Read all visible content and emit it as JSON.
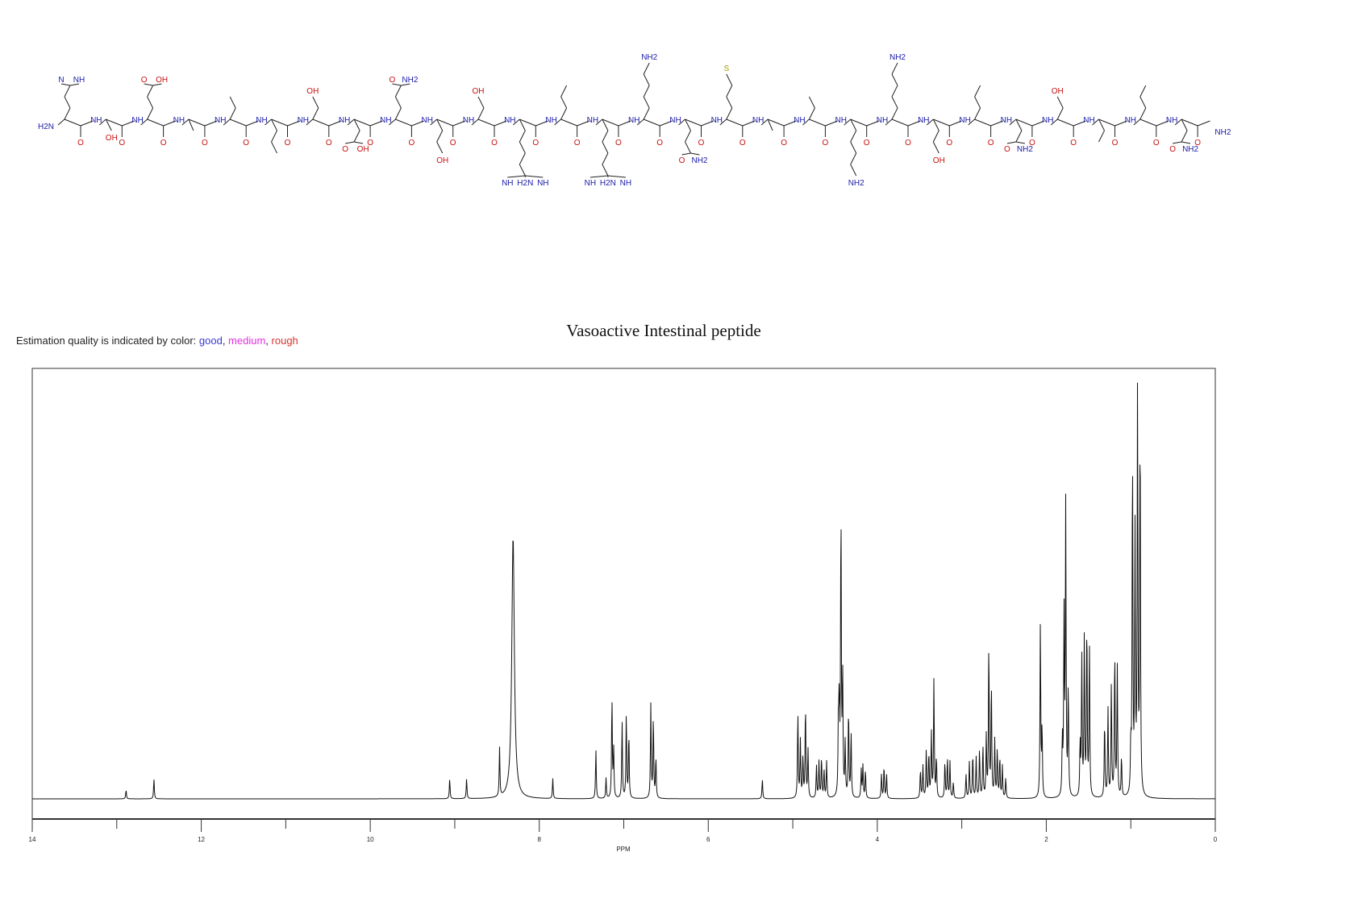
{
  "legend": {
    "prefix": "Estimation quality is indicated by color: ",
    "good": "good",
    "medium": "medium",
    "rough": "rough",
    "colors": {
      "good": "#3a3ad0",
      "medium": "#e030e0",
      "rough": "#d83030"
    }
  },
  "structure": {
    "n_terminus": "H2N",
    "c_terminus": "NH2",
    "amide": "NH",
    "carbonyl": "O",
    "atom_colors": {
      "N": "#1a1aa8",
      "O": "#c81010",
      "S": "#a09a00",
      "C": "#222222"
    },
    "sidechain_labels": [
      [
        "N",
        "NH"
      ],
      [
        "OH"
      ],
      [
        "O",
        "OH"
      ],
      [],
      [],
      [],
      [
        "OH"
      ],
      [
        "O",
        "OH"
      ],
      [
        "O",
        "NH2"
      ],
      [
        "OH"
      ],
      [
        "OH"
      ],
      [
        "NH",
        "H2N",
        "NH"
      ],
      [],
      [
        "NH",
        "H2N",
        "NH"
      ],
      [
        "NH2"
      ],
      [
        "O",
        "NH2"
      ],
      [
        "S"
      ],
      [],
      [],
      [
        "NH2"
      ],
      [
        "NH2"
      ],
      [
        "OH"
      ],
      [],
      [
        "O",
        "NH2"
      ],
      [
        "OH"
      ],
      [],
      [],
      [
        "O",
        "NH2"
      ]
    ]
  },
  "chart_data": {
    "type": "line",
    "title": "Vasoactive Intestinal peptide",
    "xlabel": "PPM",
    "ylabel": "",
    "xlim": [
      14,
      0
    ],
    "x_reversed": true,
    "ylim": [
      0,
      105
    ],
    "grid": false,
    "x_tick_labels": [
      "14",
      "12",
      "10",
      "8",
      "6",
      "4",
      "2",
      "0"
    ],
    "x_major_ticks": [
      14,
      12,
      10,
      8,
      6,
      4,
      2,
      0
    ],
    "x_minor_ticks": [
      13,
      11,
      9,
      7,
      5,
      3,
      1
    ],
    "line_color": "#111111",
    "peaks_ppm_relative_intensity": [
      [
        12.89,
        2.2
      ],
      [
        12.56,
        4.9
      ],
      [
        9.06,
        4.9
      ],
      [
        8.86,
        4.9
      ],
      [
        8.47,
        12
      ],
      [
        8.31,
        64
      ],
      [
        7.84,
        4.9
      ],
      [
        7.33,
        12
      ],
      [
        7.21,
        5
      ],
      [
        7.14,
        25
      ],
      [
        7.12,
        12
      ],
      [
        7.02,
        19
      ],
      [
        6.97,
        21
      ],
      [
        6.94,
        16
      ],
      [
        6.68,
        23
      ],
      [
        6.65,
        20
      ],
      [
        6.62,
        10
      ],
      [
        5.36,
        4.9
      ],
      [
        4.94,
        21
      ],
      [
        4.91,
        14
      ],
      [
        4.88,
        10
      ],
      [
        4.85,
        23
      ],
      [
        4.82,
        12
      ],
      [
        4.72,
        8
      ],
      [
        4.69,
        9
      ],
      [
        4.66,
        10
      ],
      [
        4.63,
        7
      ],
      [
        4.6,
        9
      ],
      [
        4.46,
        18
      ],
      [
        4.45,
        22
      ],
      [
        4.43,
        71
      ],
      [
        4.41,
        29
      ],
      [
        4.38,
        13
      ],
      [
        4.34,
        22
      ],
      [
        4.31,
        16
      ],
      [
        4.19,
        7
      ],
      [
        4.17,
        8
      ],
      [
        4.14,
        7
      ],
      [
        3.95,
        6
      ],
      [
        3.92,
        8
      ],
      [
        3.89,
        6
      ],
      [
        3.49,
        7
      ],
      [
        3.46,
        8
      ],
      [
        3.42,
        12
      ],
      [
        3.39,
        11
      ],
      [
        3.36,
        16
      ],
      [
        3.33,
        29
      ],
      [
        3.3,
        10
      ],
      [
        3.2,
        9
      ],
      [
        3.17,
        10
      ],
      [
        3.14,
        9
      ],
      [
        3.1,
        4
      ],
      [
        2.95,
        6
      ],
      [
        2.91,
        9
      ],
      [
        2.87,
        11
      ],
      [
        2.83,
        10
      ],
      [
        2.79,
        12
      ],
      [
        2.75,
        13
      ],
      [
        2.71,
        15
      ],
      [
        2.68,
        38
      ],
      [
        2.65,
        28
      ],
      [
        2.61,
        14
      ],
      [
        2.58,
        12
      ],
      [
        2.55,
        10
      ],
      [
        2.52,
        8
      ],
      [
        2.48,
        5
      ],
      [
        2.07,
        43
      ],
      [
        2.05,
        17
      ],
      [
        1.81,
        14
      ],
      [
        1.79,
        44
      ],
      [
        1.77,
        71
      ],
      [
        1.74,
        27
      ],
      [
        1.6,
        13
      ],
      [
        1.58,
        34
      ],
      [
        1.55,
        39
      ],
      [
        1.52,
        43
      ],
      [
        1.49,
        38
      ],
      [
        1.31,
        19
      ],
      [
        1.27,
        22
      ],
      [
        1.23,
        28
      ],
      [
        1.19,
        36
      ],
      [
        1.16,
        32
      ],
      [
        1.11,
        10
      ],
      [
        1.0,
        12
      ],
      [
        0.98,
        85
      ],
      [
        0.95,
        64
      ],
      [
        0.92,
        100
      ],
      [
        0.89,
        94
      ]
    ]
  }
}
